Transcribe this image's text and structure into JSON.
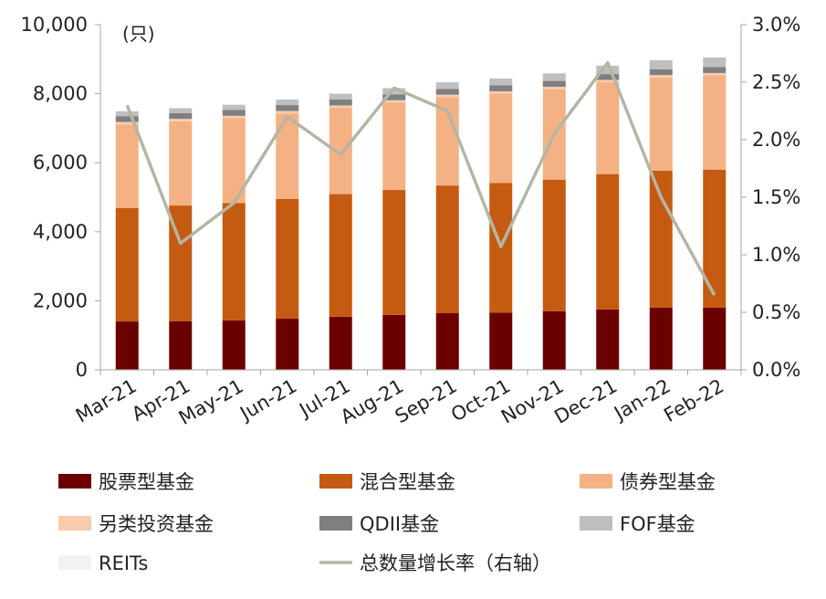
{
  "chart_data": {
    "type": "bar",
    "stacked": true,
    "categories": [
      "Mar-21",
      "Apr-21",
      "May-21",
      "Jun-21",
      "Jul-21",
      "Aug-21",
      "Sep-21",
      "Oct-21",
      "Nov-21",
      "Dec-21",
      "Jan-22",
      "Feb-22"
    ],
    "unit_label": "(只)",
    "ylim": [
      0,
      10000
    ],
    "y_ticks": [
      "0",
      "2,000",
      "4,000",
      "6,000",
      "8,000",
      "10,000"
    ],
    "y_tick_values": [
      0,
      2000,
      4000,
      6000,
      8000,
      10000
    ],
    "y2lim": [
      0,
      3.0
    ],
    "y2_ticks": [
      "0.0%",
      "0.5%",
      "1.0%",
      "1.5%",
      "2.0%",
      "2.5%",
      "3.0%"
    ],
    "y2_tick_values": [
      0,
      0.5,
      1.0,
      1.5,
      2.0,
      2.5,
      3.0
    ],
    "series": [
      {
        "name": "股票型基金",
        "color": "#6b0000",
        "values": [
          1400,
          1410,
          1430,
          1480,
          1540,
          1590,
          1640,
          1660,
          1700,
          1750,
          1800,
          1800
        ]
      },
      {
        "name": "混合型基金",
        "color": "#c55a11",
        "values": [
          3290,
          3350,
          3400,
          3470,
          3550,
          3620,
          3700,
          3750,
          3810,
          3920,
          3970,
          4000
        ]
      },
      {
        "name": "债券型基金",
        "color": "#f4b183",
        "values": [
          2420,
          2440,
          2460,
          2480,
          2500,
          2530,
          2560,
          2590,
          2620,
          2660,
          2700,
          2730
        ]
      },
      {
        "name": "另类投资基金",
        "color": "#f8cbad",
        "values": [
          70,
          70,
          70,
          70,
          70,
          70,
          70,
          70,
          70,
          70,
          70,
          70
        ]
      },
      {
        "name": "QDII基金",
        "color": "#7f7f7f",
        "values": [
          170,
          170,
          170,
          170,
          170,
          170,
          170,
          170,
          170,
          170,
          170,
          170
        ]
      },
      {
        "name": "FOF基金",
        "color": "#bfbfbf",
        "values": [
          140,
          140,
          150,
          160,
          170,
          180,
          190,
          200,
          220,
          240,
          260,
          280
        ]
      },
      {
        "name": "REITs",
        "color": "#f2f2f2",
        "values": [
          0,
          0,
          0,
          0,
          0,
          0,
          0,
          0,
          9,
          9,
          11,
          11
        ]
      }
    ],
    "line_series": {
      "name": "总数量增长率（右轴）",
      "color": "#b5b5a5",
      "axis": "right",
      "values": [
        2.3,
        1.1,
        1.45,
        2.2,
        1.87,
        2.45,
        2.25,
        1.07,
        2.05,
        2.67,
        1.5,
        0.65
      ]
    },
    "legend": [
      {
        "label": "股票型基金",
        "color": "#6b0000",
        "kind": "box"
      },
      {
        "label": "混合型基金",
        "color": "#c55a11",
        "kind": "box"
      },
      {
        "label": "债券型基金",
        "color": "#f4b183",
        "kind": "box"
      },
      {
        "label": "另类投资基金",
        "color": "#f8cbad",
        "kind": "box"
      },
      {
        "label": "QDII基金",
        "color": "#7f7f7f",
        "kind": "box"
      },
      {
        "label": "FOF基金",
        "color": "#bfbfbf",
        "kind": "box"
      },
      {
        "label": "REITs",
        "color": "#f2f2f2",
        "kind": "box"
      },
      {
        "label": "总数量增长率（右轴）",
        "color": "#b5b5a5",
        "kind": "line"
      }
    ],
    "grid": false,
    "legend_position": "bottom"
  }
}
